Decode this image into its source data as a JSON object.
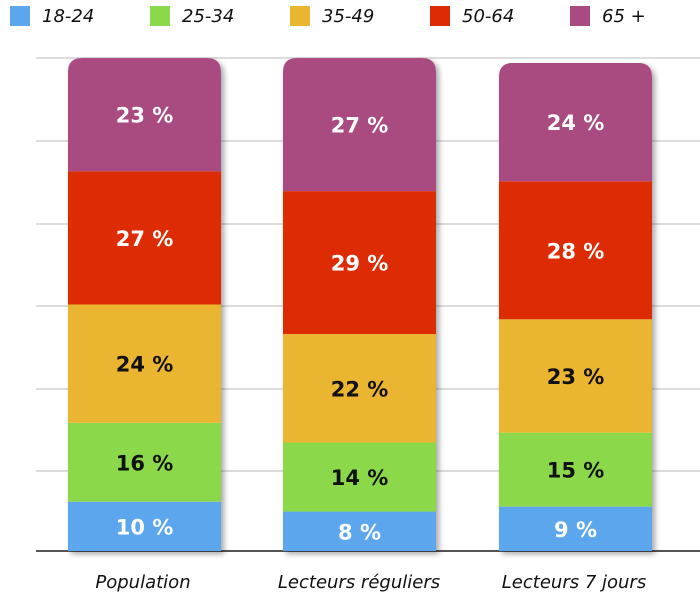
{
  "chart_data": {
    "type": "bar",
    "stacked": true,
    "unit": "%",
    "categories": [
      "Population",
      "Lecteurs réguliers",
      "Lecteurs 7 jours"
    ],
    "series": [
      {
        "name": "18-24",
        "color": "#5ba6ec",
        "values": [
          10,
          8,
          9
        ]
      },
      {
        "name": "25-34",
        "color": "#8bd94a",
        "values": [
          16,
          14,
          15
        ]
      },
      {
        "name": "35-49",
        "color": "#eab530",
        "values": [
          24,
          22,
          23
        ]
      },
      {
        "name": "50-64",
        "color": "#dd2b04",
        "values": [
          27,
          29,
          28
        ]
      },
      {
        "name": "65 +",
        "color": "#a94a80",
        "values": [
          23,
          27,
          24
        ]
      }
    ],
    "ylim": [
      0,
      100
    ],
    "grid": true,
    "legend_position": "top"
  }
}
